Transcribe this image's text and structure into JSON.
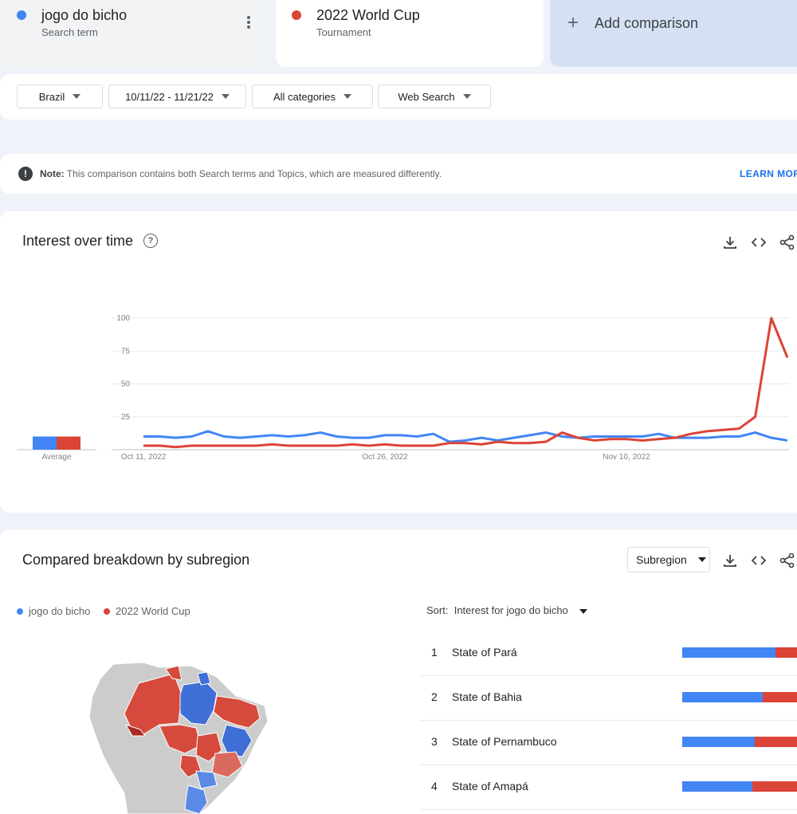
{
  "terms": [
    {
      "name": "jogo do bicho",
      "type": "Search term",
      "color": "#4285f4"
    },
    {
      "name": "2022 World Cup",
      "type": "Tournament",
      "color": "#db4437"
    }
  ],
  "add_comparison": {
    "label": "Add comparison"
  },
  "filters": {
    "region": "Brazil",
    "date_range": "10/11/22 - 11/21/22",
    "category": "All categories",
    "search_type": "Web Search"
  },
  "note": {
    "label": "Note:",
    "text": "This comparison contains both Search terms and Topics, which are measured differently.",
    "link": "LEARN MORE"
  },
  "interest_over_time": {
    "title": "Interest over time",
    "average_label": "Average"
  },
  "chart_data": {
    "type": "line",
    "ylim": [
      0,
      100
    ],
    "y_ticks": [
      "25",
      "50",
      "75",
      "100"
    ],
    "x_tick_labels": [
      "Oct 11, 2022",
      "Oct 26, 2022",
      "Nov 10, 2022"
    ],
    "series": [
      {
        "name": "jogo do bicho",
        "color": "#4285f4",
        "values": [
          10,
          10,
          9,
          10,
          14,
          10,
          9,
          10,
          11,
          10,
          11,
          13,
          10,
          9,
          9,
          11,
          11,
          10,
          12,
          6,
          7,
          9,
          7,
          9,
          11,
          13,
          10,
          9,
          10,
          10,
          10,
          10,
          12,
          9,
          9,
          9,
          10,
          10,
          13,
          9,
          7
        ],
        "average": 10
      },
      {
        "name": "2022 World Cup",
        "color": "#db4437",
        "values": [
          3,
          3,
          2,
          3,
          3,
          3,
          3,
          3,
          4,
          3,
          3,
          3,
          3,
          4,
          3,
          4,
          3,
          3,
          3,
          5,
          5,
          4,
          6,
          5,
          5,
          6,
          13,
          9,
          7,
          8,
          8,
          7,
          8,
          9,
          12,
          14,
          15,
          16,
          25,
          100,
          70
        ],
        "average": 10
      }
    ]
  },
  "breakdown": {
    "title": "Compared breakdown by subregion",
    "select_label": "Subregion",
    "sort_label": "Sort:",
    "sort_value": "Interest for jogo do bicho",
    "rows": [
      {
        "rank": "1",
        "name": "State of Pará",
        "share_blue": 0.81
      },
      {
        "rank": "2",
        "name": "State of Bahia",
        "share_blue": 0.7
      },
      {
        "rank": "3",
        "name": "State of Pernambuco",
        "share_blue": 0.63
      },
      {
        "rank": "4",
        "name": "State of Amapá",
        "share_blue": 0.61
      }
    ]
  }
}
